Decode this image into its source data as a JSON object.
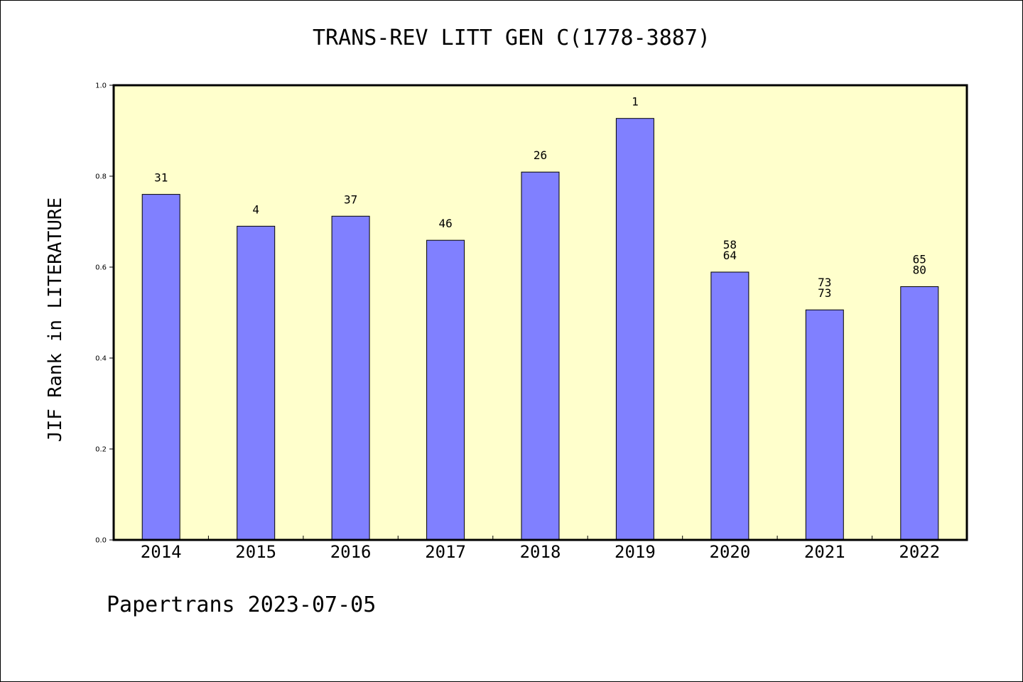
{
  "colors": {
    "plot_background": "#ffffcc",
    "bar_fill": "#8080ff",
    "bar_stroke": "#000000"
  },
  "footer_text": "Papertrans 2023-07-05",
  "chart_data": {
    "type": "bar",
    "title": "TRANS-REV LITT GEN C(1778-3887)",
    "xlabel": "",
    "ylabel": "JIF Rank in LITERATURE",
    "ylim": [
      0,
      1.0
    ],
    "yticks": [
      "0.0",
      "0.2",
      "0.4",
      "0.6",
      "0.8",
      "1.0"
    ],
    "categories": [
      "2014",
      "2015",
      "2016",
      "2017",
      "2018",
      "2019",
      "2020",
      "2021",
      "2022"
    ],
    "values": [
      0.76,
      0.69,
      0.712,
      0.659,
      0.809,
      0.927,
      0.589,
      0.506,
      0.557
    ],
    "bar_labels": [
      [
        "31"
      ],
      [
        "4"
      ],
      [
        "37"
      ],
      [
        "46"
      ],
      [
        "26"
      ],
      [
        "1"
      ],
      [
        "58",
        "64"
      ],
      [
        "73",
        "73"
      ],
      [
        "65",
        "80"
      ]
    ],
    "grid": false,
    "legend": "none"
  }
}
